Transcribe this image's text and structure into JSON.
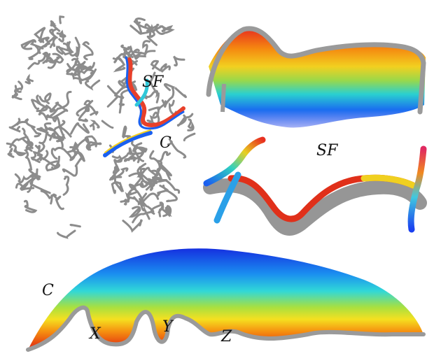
{
  "brain_panel": {
    "sf_label": "SF",
    "c_label": "C"
  },
  "sf_panel": {
    "label": "SF"
  },
  "c_panel": {
    "label": "C",
    "notches": [
      "X",
      "Y",
      "Z"
    ]
  }
}
